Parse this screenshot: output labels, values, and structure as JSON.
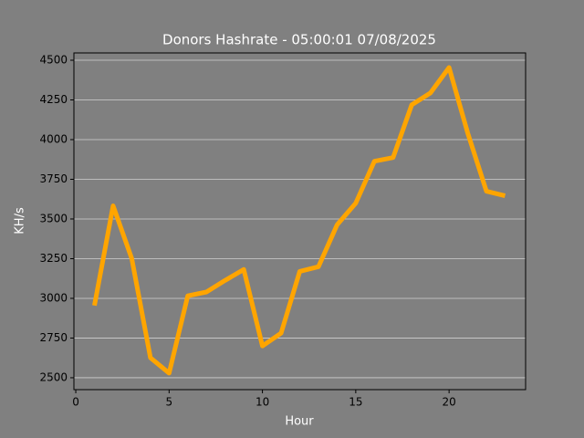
{
  "chart_data": {
    "type": "line",
    "title": "Donors Hashrate - 05:00:01 07/08/2025",
    "x_label": "Hour",
    "y_label": "KH/s",
    "x": [
      1,
      2,
      3,
      4,
      5,
      6,
      7,
      8,
      9,
      10,
      11,
      12,
      13,
      14,
      15,
      16,
      17,
      18,
      19,
      20,
      21,
      22,
      23
    ],
    "series": [
      {
        "name": "Hashrate",
        "color": "#ffa500",
        "values": [
          2955,
          3583,
          3250,
          2626,
          2529,
          3016,
          3040,
          3113,
          3182,
          2700,
          2781,
          3170,
          3199,
          3463,
          3600,
          3864,
          3887,
          4219,
          4294,
          4454,
          4041,
          3675,
          3646
        ]
      }
    ],
    "xlim": [
      -0.1,
      24.1
    ],
    "xticks": [
      0,
      5,
      10,
      15,
      20
    ],
    "ylim": [
      2425,
      4546
    ],
    "yticks": [
      2500,
      2750,
      3000,
      3250,
      3500,
      3750,
      4000,
      4250,
      4500
    ],
    "grid": "y"
  }
}
